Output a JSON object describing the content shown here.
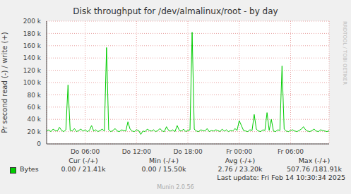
{
  "chart_data": {
    "type": "line",
    "title": "Disk throughput for /dev/almalinux/root - by day",
    "y_label": "Pr second read (-) / write (+)",
    "x": [
      1.5,
      1.75,
      2,
      2.25,
      2.5,
      2.75,
      3,
      3.25,
      3.5,
      3.75,
      4,
      4.25,
      4.5,
      4.75,
      5,
      5.25,
      5.5,
      5.75,
      6,
      6.25,
      6.5,
      6.75,
      7,
      7.25,
      7.5,
      7.75,
      8,
      8.25,
      8.5,
      8.75,
      9,
      9.25,
      9.5,
      9.75,
      10,
      10.25,
      10.5,
      10.75,
      11,
      11.25,
      11.5,
      11.75,
      12,
      12.25,
      12.5,
      12.75,
      13,
      13.25,
      13.5,
      13.75,
      14,
      14.25,
      14.5,
      14.75,
      15,
      15.25,
      15.5,
      15.75,
      16,
      16.25,
      16.5,
      16.75,
      17,
      17.25,
      17.5,
      17.75,
      18,
      18.25,
      18.5,
      18.75,
      19,
      19.25,
      19.5,
      19.75,
      20,
      20.25,
      20.5,
      20.75,
      21,
      21.25,
      21.5,
      21.75,
      22,
      22.25,
      22.5,
      22.75,
      23,
      23.25,
      23.5,
      23.75,
      24,
      24.25,
      24.5,
      24.75,
      25,
      25.25,
      25.5,
      25.75,
      26,
      26.25,
      26.5,
      26.75,
      27,
      27.25,
      27.5,
      27.75,
      28,
      28.25,
      28.5,
      28.75,
      29,
      29.25,
      29.5,
      29.75,
      30,
      30.25,
      30.5,
      30.75,
      31,
      31.25,
      31.5,
      31.75,
      32,
      32.25,
      32.5,
      32.75,
      33,
      33.25,
      33.5,
      33.75,
      34,
      34.25,
      34.5
    ],
    "series": [
      {
        "name": "Bytes",
        "color": "#00cc00",
        "values": [
          21000,
          23000,
          20000,
          24000,
          22000,
          21000,
          27000,
          22000,
          20000,
          23000,
          96000,
          22000,
          21000,
          25000,
          20000,
          22000,
          24000,
          21000,
          23000,
          20000,
          22000,
          30000,
          21000,
          23000,
          20000,
          22000,
          24000,
          21000,
          157000,
          23000,
          20000,
          22000,
          25000,
          21000,
          20000,
          23000,
          22000,
          21000,
          36000,
          24000,
          21000,
          20000,
          23000,
          22000,
          15500,
          21000,
          20000,
          24000,
          22000,
          21000,
          23000,
          20000,
          22000,
          25000,
          21000,
          20000,
          28000,
          22000,
          21000,
          23000,
          20000,
          30000,
          22000,
          21000,
          24000,
          20000,
          22000,
          23000,
          181910,
          24000,
          21000,
          20000,
          23000,
          22000,
          21000,
          25000,
          20000,
          22000,
          21000,
          23000,
          22000,
          20000,
          24000,
          21000,
          23000,
          20000,
          22000,
          21000,
          25000,
          22000,
          38000,
          30000,
          22000,
          21000,
          20000,
          23000,
          22000,
          48000,
          24000,
          21000,
          20000,
          23000,
          22000,
          51000,
          22000,
          40000,
          21000,
          20000,
          23000,
          22000,
          127000,
          24000,
          21000,
          20000,
          22000,
          23000,
          21000,
          20000,
          22000,
          24000,
          28000,
          23000,
          21000,
          20000,
          22000,
          24000,
          21000,
          20000,
          23000,
          22000,
          21000,
          20000,
          21410
        ]
      }
    ],
    "xlim": [
      1.5,
      34.5
    ],
    "xticks": [
      {
        "value": 6,
        "label": "Do 06:00"
      },
      {
        "value": 12,
        "label": "Do 12:00"
      },
      {
        "value": 18,
        "label": "Do 18:00"
      },
      {
        "value": 24,
        "label": "Fr 00:00"
      },
      {
        "value": 30,
        "label": "Fr 06:00"
      }
    ],
    "ylim": [
      0,
      200000
    ],
    "yticks": [
      0,
      {
        "value": 20000,
        "label": "20 k"
      },
      {
        "value": 40000,
        "label": "40 k"
      },
      {
        "value": 60000,
        "label": "60 k"
      },
      {
        "value": 80000,
        "label": "80 k"
      },
      {
        "value": 100000,
        "label": "100 k"
      },
      {
        "value": 120000,
        "label": "120 k"
      },
      {
        "value": 140000,
        "label": "140 k"
      },
      {
        "value": 160000,
        "label": "160 k"
      },
      {
        "value": 180000,
        "label": "180 k"
      },
      {
        "value": 200000,
        "label": "200 k"
      }
    ],
    "grid": true,
    "stats": {
      "columns": [
        "Cur (-/+)",
        "Min (-/+)",
        "Avg (-/+)",
        "Max (-/+)"
      ],
      "values": [
        "0.00 / 21.41k",
        "0.00 / 15.50k",
        "2.76 / 23.20k",
        "507.76 /181.91k"
      ]
    },
    "footer": "Last update: Fri Feb 14 10:30:34 2025",
    "credit": "Munin 2.0.56",
    "watermark": "RRDTOOL / TOBI OETIKER"
  }
}
